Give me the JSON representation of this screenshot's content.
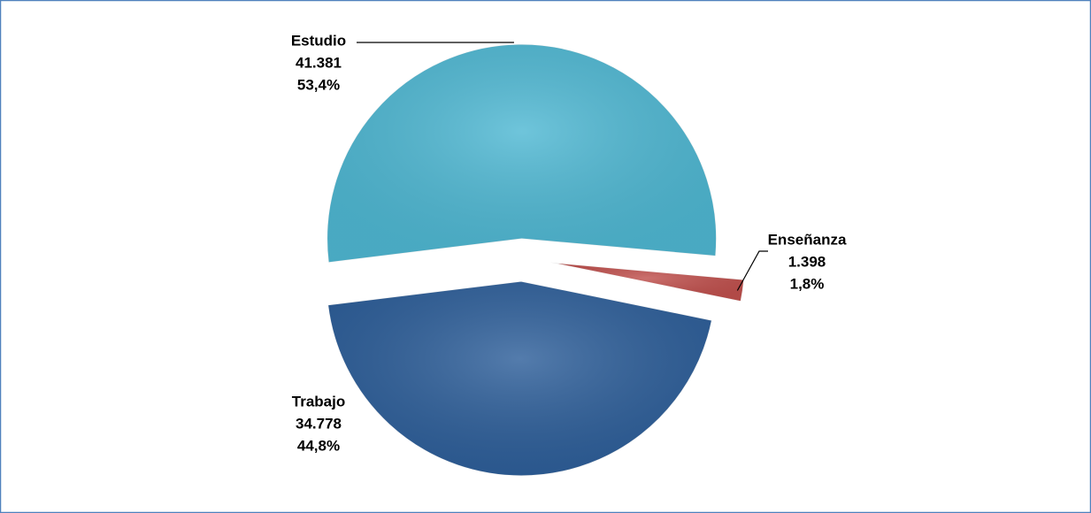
{
  "chart_data": {
    "type": "pie",
    "categories": [
      "Estudio",
      "Enseñanza",
      "Trabajo"
    ],
    "values": [
      41381,
      1398,
      34778
    ],
    "value_labels": [
      "41.381",
      "1.398",
      "34.778"
    ],
    "percents": [
      53.4,
      1.8,
      44.8
    ],
    "percent_labels": [
      "53,4%",
      "1,8%",
      "44,8%"
    ],
    "colors": [
      "#4fb8d3",
      "#c0504d",
      "#2e5f9a"
    ]
  }
}
